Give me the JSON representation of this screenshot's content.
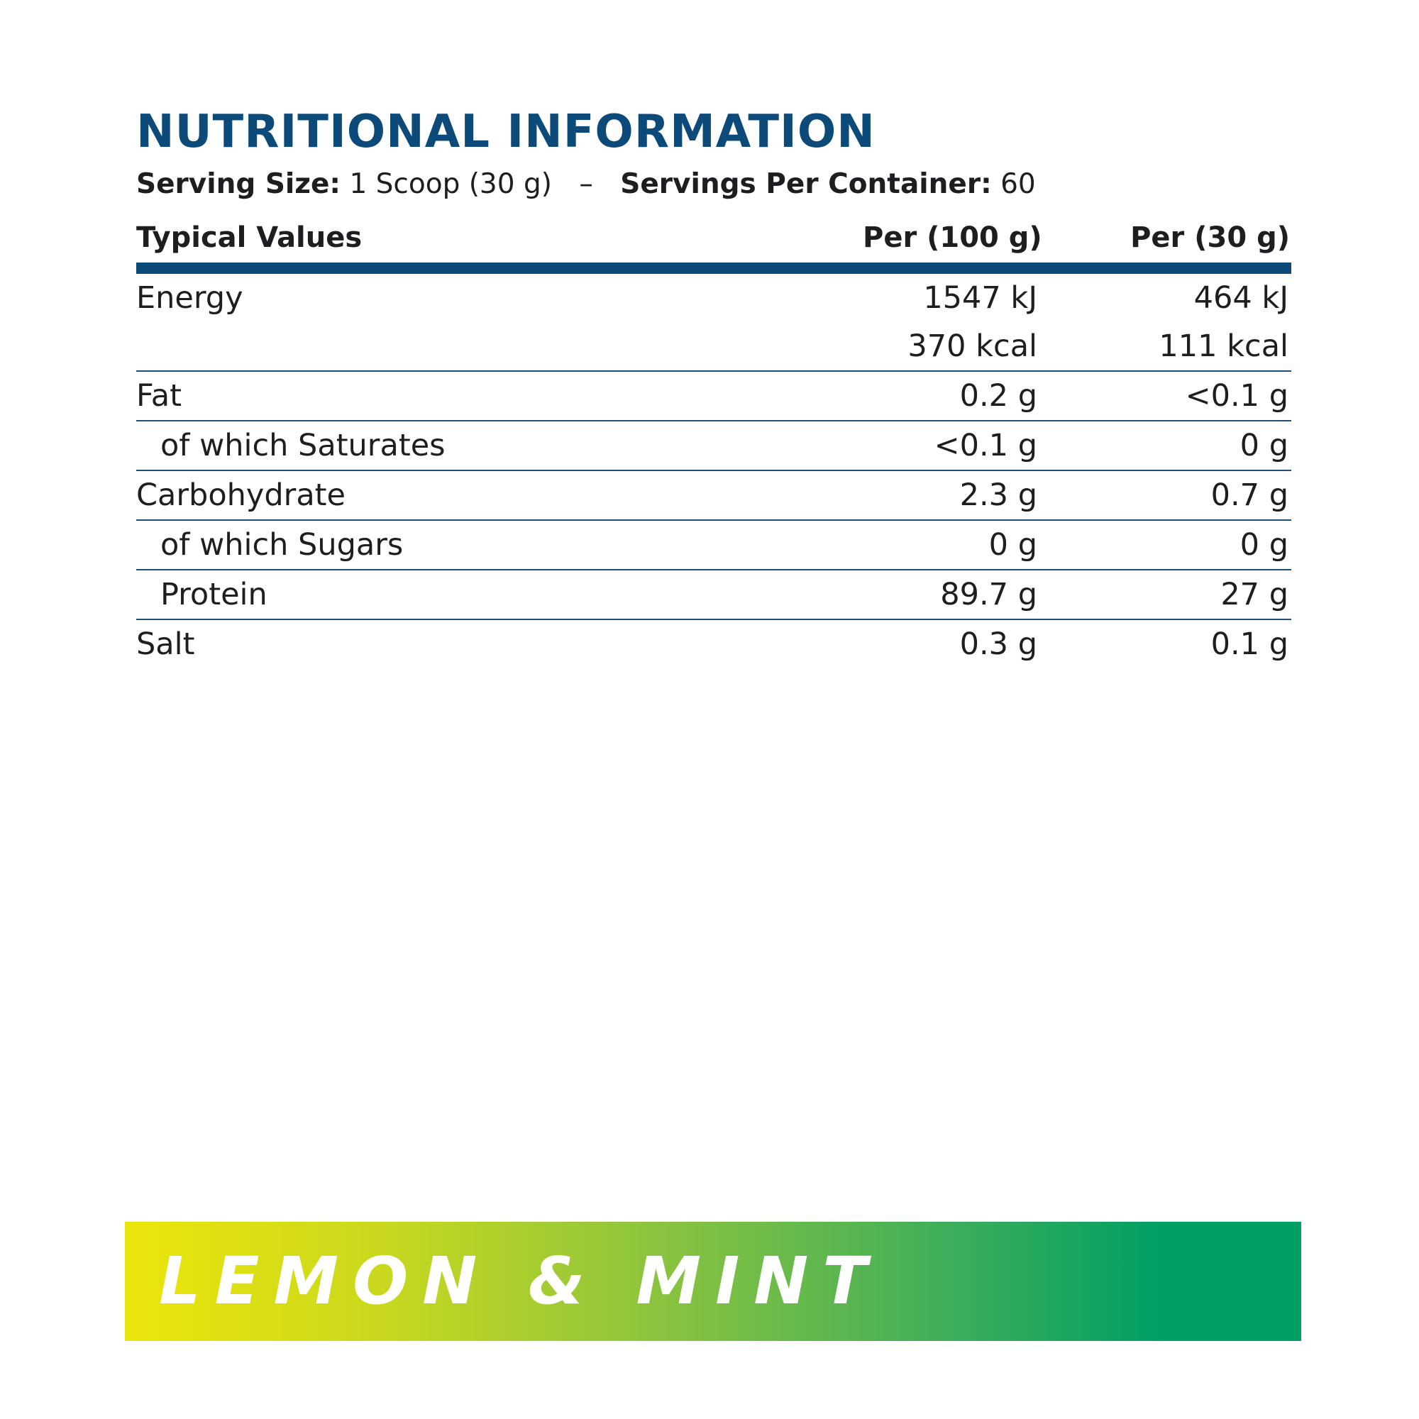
{
  "colors": {
    "title": "#0c4a7a",
    "text": "#1e1e22",
    "rule_thick": "#0c4a7a",
    "rule_thin": "#1d4f78",
    "banner_start": "#ede50a",
    "banner_end": "#00a065",
    "banner_text": "#ffffff"
  },
  "header": {
    "title": "NUTRITIONAL INFORMATION",
    "serving_size_label": "Serving Size:",
    "serving_size_value": "1 Scoop (30 g)",
    "separator": "–",
    "servings_per_container_label": "Servings Per Container:",
    "servings_per_container_value": "60"
  },
  "table": {
    "columns": [
      "Typical Values",
      "Per (100 g)",
      "Per (30 g)"
    ],
    "rows": [
      {
        "name": "Energy",
        "per_100g": "1547 kJ",
        "per_serving": "464 kJ",
        "indent": false,
        "line_below": false
      },
      {
        "name": "",
        "per_100g": "370 kcal",
        "per_serving": "111 kcal",
        "indent": false,
        "line_below": true
      },
      {
        "name": "Fat",
        "per_100g": "0.2 g",
        "per_serving": "<0.1 g",
        "indent": false,
        "line_below": true
      },
      {
        "name": "of which Saturates",
        "per_100g": "<0.1 g",
        "per_serving": "0 g",
        "indent": true,
        "line_below": true
      },
      {
        "name": "Carbohydrate",
        "per_100g": "2.3 g",
        "per_serving": "0.7 g",
        "indent": false,
        "line_below": true
      },
      {
        "name": "of which Sugars",
        "per_100g": "0 g",
        "per_serving": "0 g",
        "indent": true,
        "line_below": true
      },
      {
        "name": "Protein",
        "per_100g": "89.7 g",
        "per_serving": "27 g",
        "indent": true,
        "line_below": true
      },
      {
        "name": "Salt",
        "per_100g": "0.3 g",
        "per_serving": "0.1 g",
        "indent": false,
        "line_below": false
      }
    ]
  },
  "flavour": {
    "label": "LEMON & MINT"
  }
}
